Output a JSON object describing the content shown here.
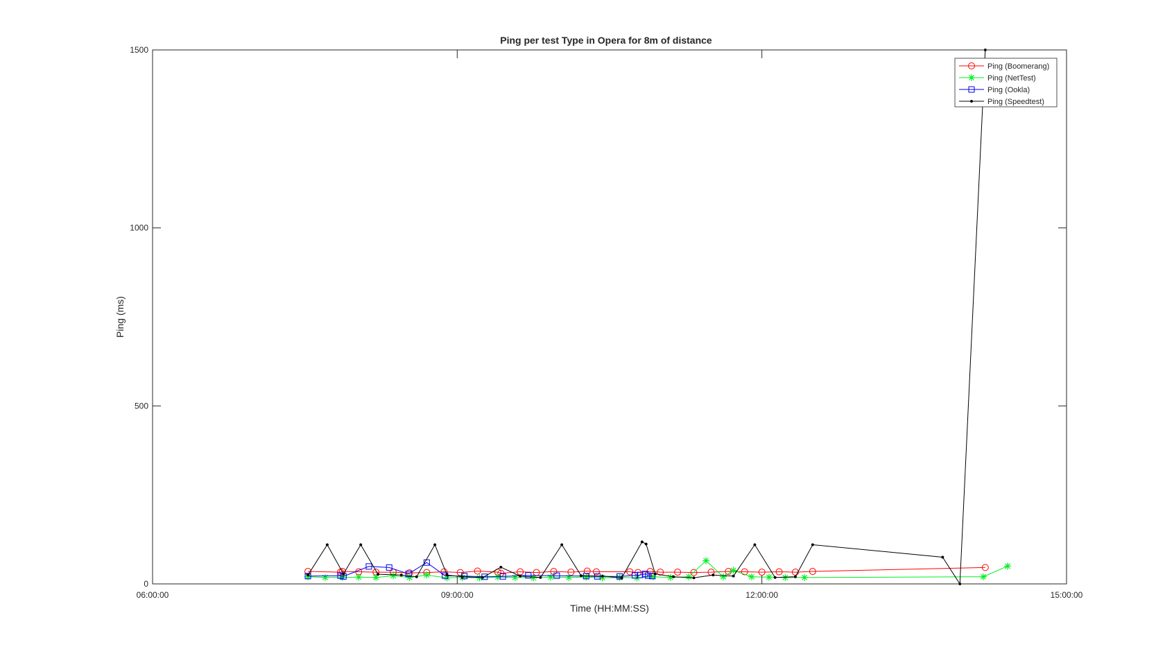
{
  "chart_data": {
    "type": "line",
    "title": "Ping per test Type in Opera for 8m of distance",
    "xlabel": "Time (HH:MM:SS)",
    "ylabel": "Ping (ms)",
    "xlim": [
      6.0,
      15.0
    ],
    "ylim": [
      0,
      1500
    ],
    "x_ticks": [
      {
        "value": 6.0,
        "label": "06:00:00"
      },
      {
        "value": 9.0,
        "label": "09:00:00"
      },
      {
        "value": 12.0,
        "label": "12:00:00"
      },
      {
        "value": 15.0,
        "label": "15:00:00"
      }
    ],
    "y_ticks": [
      {
        "value": 0,
        "label": "0"
      },
      {
        "value": 500,
        "label": "500"
      },
      {
        "value": 1000,
        "label": "1000"
      },
      {
        "value": 1500,
        "label": "1500"
      }
    ],
    "grid": false,
    "legend_position": "top-right",
    "series": [
      {
        "name": "Ping (Boomerang)",
        "color": "#ff0000",
        "marker": "circle",
        "x": [
          7.53,
          7.85,
          7.87,
          8.03,
          8.2,
          8.37,
          8.53,
          8.7,
          8.87,
          9.03,
          9.2,
          9.4,
          9.43,
          9.62,
          9.78,
          9.95,
          10.12,
          10.28,
          10.37,
          10.7,
          10.78,
          10.9,
          11.0,
          11.17,
          11.33,
          11.5,
          11.67,
          11.83,
          12.0,
          12.17,
          12.33,
          12.5,
          14.2
        ],
        "y": [
          35,
          33,
          35,
          34,
          33,
          33,
          31,
          32,
          34,
          32,
          36,
          33,
          30,
          34,
          32,
          35,
          33,
          36,
          34,
          34,
          32,
          35,
          33,
          33,
          32,
          33,
          35,
          34,
          33,
          34,
          33,
          35,
          46
        ]
      },
      {
        "name": "Ping (NetTest)",
        "color": "#00ee22",
        "marker": "asterisk",
        "x": [
          7.53,
          7.7,
          7.87,
          8.03,
          8.2,
          8.37,
          8.53,
          8.7,
          8.9,
          9.05,
          9.22,
          9.4,
          9.57,
          9.75,
          9.92,
          10.1,
          10.27,
          10.43,
          10.6,
          10.77,
          10.93,
          11.1,
          11.28,
          11.45,
          11.62,
          11.72,
          11.9,
          12.07,
          12.23,
          12.42,
          14.18,
          14.42
        ],
        "y": [
          20,
          18,
          18,
          19,
          18,
          23,
          18,
          25,
          17,
          18,
          17,
          19,
          18,
          17,
          19,
          18,
          19,
          17,
          18,
          17,
          20,
          18,
          20,
          65,
          20,
          38,
          20,
          19,
          18,
          18,
          20,
          50
        ]
      },
      {
        "name": "Ping (Ookla)",
        "color": "#0000ee",
        "marker": "square",
        "x": [
          7.53,
          7.85,
          7.88,
          8.13,
          8.33,
          8.52,
          8.7,
          8.88,
          9.07,
          9.27,
          9.45,
          9.7,
          9.98,
          10.27,
          10.38,
          10.6,
          10.75,
          10.8,
          10.85,
          10.88,
          10.92
        ],
        "y": [
          22,
          23,
          21,
          49,
          46,
          28,
          60,
          23,
          22,
          20,
          21,
          24,
          23,
          22,
          21,
          21,
          24,
          25,
          28,
          23,
          22
        ]
      },
      {
        "name": "Ping (Speedtest)",
        "color": "#000000",
        "marker": "dot",
        "x": [
          7.53,
          7.72,
          7.88,
          8.05,
          8.22,
          8.45,
          8.6,
          8.78,
          8.9,
          9.05,
          9.25,
          9.43,
          9.62,
          9.82,
          10.03,
          10.22,
          10.43,
          10.62,
          10.82,
          10.86,
          10.95,
          11.13,
          11.33,
          11.52,
          11.72,
          11.93,
          12.13,
          12.33,
          12.5,
          13.78,
          13.95,
          14.2
        ],
        "y": [
          25,
          110,
          28,
          110,
          27,
          25,
          20,
          110,
          25,
          20,
          18,
          47,
          22,
          18,
          110,
          23,
          22,
          17,
          118,
          112,
          28,
          20,
          17,
          25,
          22,
          110,
          18,
          20,
          110,
          75,
          0,
          1500
        ]
      }
    ]
  }
}
